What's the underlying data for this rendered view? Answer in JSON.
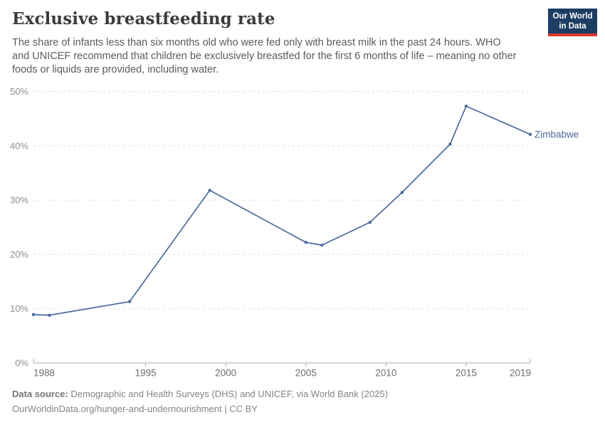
{
  "header": {
    "title": "Exclusive breastfeeding rate",
    "subtitle_lines": [
      "The share of infants less than six months old who were fed only with breast milk in the past 24 hours. WHO",
      "and UNICEF recommend that children be exclusively breastfed for the first 6 months of life – meaning no other",
      "foods or liquids are provided, including water."
    ]
  },
  "logo": {
    "line1": "Our World",
    "line2": "in Data",
    "bg_color": "#1d3d63",
    "accent_color": "#dc352c"
  },
  "chart_data": {
    "type": "line",
    "title": "Exclusive breastfeeding rate",
    "unit": "%",
    "x": [
      1988,
      1989,
      1994,
      1999,
      2005,
      2006,
      2009,
      2011,
      2014,
      2015,
      2019
    ],
    "series": [
      {
        "name": "Zimbabwe",
        "values": [
          8.9,
          8.8,
          11.3,
          31.8,
          22.2,
          21.7,
          25.9,
          31.4,
          40.3,
          47.3,
          42.1
        ],
        "color": "#4c6a9c"
      }
    ],
    "x_ticks": [
      1988,
      1995,
      2000,
      2005,
      2010,
      2015,
      2019
    ],
    "y_ticks": [
      0,
      10,
      20,
      30,
      40,
      50
    ],
    "y_tick_suffix": "%",
    "xlim": [
      1988,
      2019
    ],
    "ylim": [
      0,
      50
    ],
    "grid": "dashed-horizontal",
    "legend_position": "line-end-label",
    "gridline_color": "#dedede",
    "axis_color": "#a8a8a8",
    "y_label_color": "#8f8f8f",
    "x_label_color": "#6d6d6d"
  },
  "footer": {
    "source_label": "Data source:",
    "source_text": "Demographic and Health Surveys (DHS) and UNICEF, via World Bank (2025)",
    "link_line": "OurWorldinData.org/hunger-and-undernourishment | CC BY"
  }
}
